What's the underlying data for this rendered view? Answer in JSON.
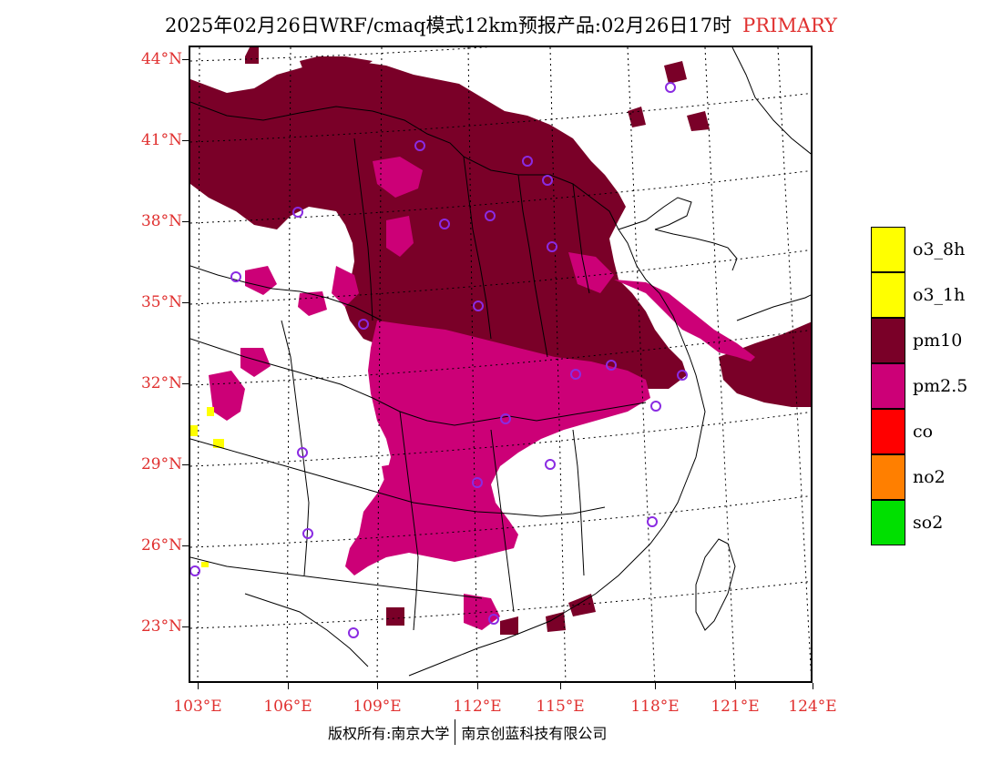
{
  "title": {
    "main": "2025年02月26日WRF/cmaq模式12km预报产品:02月26日17时",
    "tag": "PRIMARY"
  },
  "axes": {
    "lat_labels": [
      "44°N",
      "41°N",
      "38°N",
      "35°N",
      "32°N",
      "29°N",
      "26°N",
      "23°N"
    ],
    "lon_labels": [
      "103°E",
      "106°E",
      "109°E",
      "112°E",
      "115°E",
      "118°E",
      "121°E",
      "124°E"
    ]
  },
  "legend": {
    "items": [
      {
        "label": "o3_8h",
        "color": "#ffff00"
      },
      {
        "label": "o3_1h",
        "color": "#ffff00"
      },
      {
        "label": "pm10",
        "color": "#7a0028"
      },
      {
        "label": "pm2.5",
        "color": "#cc0077"
      },
      {
        "label": "co",
        "color": "#ff0000"
      },
      {
        "label": "no2",
        "color": "#ff7f00"
      },
      {
        "label": "so2",
        "color": "#00e000"
      }
    ]
  },
  "footer": {
    "left": "版权所有:南京大学",
    "right": "南京创蓝科技有限公司"
  },
  "colors": {
    "label_red": "#e0302f",
    "pm10": "#7a0028",
    "pm25": "#cc0077",
    "station_circle": "#8a2be2"
  }
}
